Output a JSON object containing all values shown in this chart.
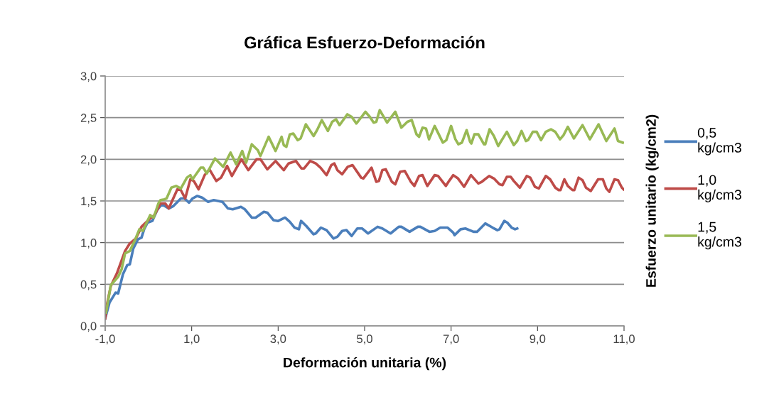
{
  "chart_data": {
    "type": "line",
    "title": "Gráfica Esfuerzo-Deformación",
    "xlabel": "Deformación unitaria (%)",
    "ylabel": "Esfuerzo unitario (kg/cm2)",
    "xlim": [
      -1,
      11
    ],
    "ylim": [
      0,
      3
    ],
    "xticks": [
      {
        "value": -1,
        "label": "-1,0"
      },
      {
        "value": 1,
        "label": "1,0"
      },
      {
        "value": 3,
        "label": "3,0"
      },
      {
        "value": 5,
        "label": "5,0"
      },
      {
        "value": 7,
        "label": "7,0"
      },
      {
        "value": 9,
        "label": "9,0"
      },
      {
        "value": 11,
        "label": "11,0"
      }
    ],
    "yticks": [
      {
        "value": 0,
        "label": "0,0"
      },
      {
        "value": 0.5,
        "label": "0,5"
      },
      {
        "value": 1,
        "label": "1,0"
      },
      {
        "value": 1.5,
        "label": "1,5"
      },
      {
        "value": 2,
        "label": "2,0"
      },
      {
        "value": 2.5,
        "label": "2,5"
      },
      {
        "value": 3,
        "label": "3,0"
      }
    ],
    "grid": "y",
    "legend": "right",
    "marker": "none",
    "line_style": "solid",
    "series": [
      {
        "name": "0,5 kg/cm3",
        "color": "#4a7ebb",
        "x": [
          -1.0,
          -0.9,
          -0.76,
          -0.7,
          -0.59,
          -0.49,
          -0.43,
          -0.35,
          -0.24,
          -0.16,
          -0.1,
          -0.02,
          0.09,
          0.2,
          0.31,
          0.47,
          0.58,
          0.75,
          0.83,
          0.94,
          1.02,
          1.13,
          1.24,
          1.38,
          1.51,
          1.71,
          1.84,
          1.95,
          2.14,
          2.23,
          2.39,
          2.48,
          2.67,
          2.75,
          2.89,
          3.0,
          3.16,
          3.27,
          3.38,
          3.48,
          3.53,
          3.65,
          3.82,
          3.87,
          3.99,
          4.12,
          4.28,
          4.37,
          4.48,
          4.58,
          4.7,
          4.83,
          4.94,
          5.08,
          5.3,
          5.41,
          5.6,
          5.79,
          5.85,
          6.04,
          6.23,
          6.29,
          6.5,
          6.62,
          6.75,
          6.92,
          7.05,
          7.08,
          7.22,
          7.33,
          7.52,
          7.6,
          7.79,
          7.96,
          8.07,
          8.12,
          8.23,
          8.3,
          8.4,
          8.48,
          8.53
        ],
        "values": [
          0.09,
          0.28,
          0.4,
          0.39,
          0.62,
          0.73,
          0.74,
          0.93,
          1.04,
          1.06,
          1.16,
          1.24,
          1.26,
          1.39,
          1.46,
          1.41,
          1.44,
          1.53,
          1.53,
          1.48,
          1.53,
          1.56,
          1.54,
          1.49,
          1.51,
          1.49,
          1.41,
          1.4,
          1.43,
          1.4,
          1.3,
          1.3,
          1.37,
          1.36,
          1.27,
          1.26,
          1.3,
          1.25,
          1.18,
          1.16,
          1.26,
          1.2,
          1.1,
          1.11,
          1.18,
          1.15,
          1.05,
          1.07,
          1.14,
          1.15,
          1.08,
          1.17,
          1.17,
          1.11,
          1.19,
          1.17,
          1.11,
          1.19,
          1.19,
          1.13,
          1.19,
          1.19,
          1.13,
          1.14,
          1.18,
          1.18,
          1.12,
          1.09,
          1.16,
          1.17,
          1.13,
          1.13,
          1.23,
          1.18,
          1.15,
          1.16,
          1.26,
          1.24,
          1.18,
          1.16,
          1.17
        ]
      },
      {
        "name": "1,0 kg/cm3",
        "color": "#be4b48",
        "x": [
          -1.0,
          -0.95,
          -0.87,
          -0.73,
          -0.54,
          -0.43,
          -0.29,
          -0.16,
          0.04,
          0.14,
          0.28,
          0.39,
          0.47,
          0.67,
          0.75,
          0.85,
          0.97,
          1.05,
          1.16,
          1.3,
          1.41,
          1.57,
          1.68,
          1.82,
          1.93,
          2.15,
          2.31,
          2.5,
          2.59,
          2.75,
          2.94,
          3.13,
          3.24,
          3.41,
          3.54,
          3.6,
          3.74,
          3.87,
          3.98,
          4.12,
          4.23,
          4.3,
          4.37,
          4.48,
          4.61,
          4.72,
          4.92,
          4.97,
          5.16,
          5.27,
          5.33,
          5.41,
          5.49,
          5.63,
          5.71,
          5.82,
          5.93,
          6.07,
          6.15,
          6.26,
          6.34,
          6.45,
          6.62,
          6.7,
          6.88,
          6.94,
          7.05,
          7.16,
          7.3,
          7.46,
          7.63,
          7.71,
          7.88,
          7.99,
          8.12,
          8.19,
          8.29,
          8.38,
          8.45,
          8.59,
          8.75,
          8.83,
          8.94,
          9.03,
          9.19,
          9.29,
          9.41,
          9.49,
          9.53,
          9.62,
          9.7,
          9.81,
          9.85,
          9.95,
          10.04,
          10.12,
          10.23,
          10.4,
          10.51,
          10.59,
          10.66,
          10.78,
          10.86,
          10.95,
          10.99
        ],
        "values": [
          0.09,
          0.28,
          0.48,
          0.63,
          0.9,
          0.99,
          1.05,
          1.19,
          1.29,
          1.33,
          1.47,
          1.47,
          1.41,
          1.64,
          1.63,
          1.53,
          1.76,
          1.74,
          1.64,
          1.81,
          1.88,
          1.74,
          1.78,
          1.92,
          1.8,
          2.0,
          1.87,
          2.0,
          2.0,
          1.88,
          1.98,
          1.87,
          1.95,
          1.98,
          1.89,
          1.89,
          1.98,
          1.95,
          1.9,
          1.81,
          1.93,
          1.95,
          1.87,
          1.82,
          1.91,
          1.93,
          1.78,
          1.77,
          1.9,
          1.73,
          1.74,
          1.87,
          1.88,
          1.73,
          1.7,
          1.85,
          1.86,
          1.73,
          1.68,
          1.8,
          1.81,
          1.68,
          1.81,
          1.8,
          1.68,
          1.73,
          1.81,
          1.77,
          1.67,
          1.81,
          1.71,
          1.73,
          1.8,
          1.77,
          1.7,
          1.69,
          1.79,
          1.79,
          1.74,
          1.66,
          1.8,
          1.78,
          1.67,
          1.65,
          1.8,
          1.76,
          1.66,
          1.63,
          1.63,
          1.76,
          1.68,
          1.63,
          1.63,
          1.78,
          1.75,
          1.66,
          1.62,
          1.76,
          1.76,
          1.65,
          1.61,
          1.76,
          1.75,
          1.66,
          1.64
        ]
      },
      {
        "name": "1,5 kg/cm3",
        "color": "#98b954",
        "x": [
          -0.98,
          -0.87,
          -0.7,
          -0.62,
          -0.54,
          -0.43,
          -0.32,
          -0.21,
          -0.13,
          0.04,
          0.12,
          0.23,
          0.28,
          0.37,
          0.42,
          0.53,
          0.64,
          0.75,
          0.89,
          0.97,
          1.02,
          1.21,
          1.27,
          1.35,
          1.54,
          1.73,
          1.9,
          2.03,
          2.17,
          2.26,
          2.39,
          2.53,
          2.59,
          2.78,
          2.94,
          3.08,
          3.13,
          3.19,
          3.27,
          3.35,
          3.45,
          3.52,
          3.64,
          3.82,
          3.9,
          4.01,
          4.15,
          4.25,
          4.34,
          4.42,
          4.6,
          4.7,
          4.81,
          5.02,
          5.12,
          5.21,
          5.27,
          5.35,
          5.52,
          5.71,
          5.85,
          5.99,
          6.09,
          6.2,
          6.26,
          6.34,
          6.42,
          6.49,
          6.62,
          6.81,
          6.89,
          7.0,
          7.1,
          7.17,
          7.25,
          7.36,
          7.44,
          7.47,
          7.54,
          7.63,
          7.76,
          7.79,
          7.89,
          7.99,
          8.09,
          8.29,
          8.45,
          8.53,
          8.63,
          8.73,
          8.78,
          8.89,
          8.98,
          9.08,
          9.19,
          9.31,
          9.41,
          9.52,
          9.6,
          9.7,
          9.84,
          10.04,
          10.21,
          10.41,
          10.59,
          10.78,
          10.86,
          10.97
        ],
        "values": [
          0.16,
          0.49,
          0.59,
          0.68,
          0.87,
          0.9,
          1.02,
          1.16,
          1.14,
          1.33,
          1.3,
          1.47,
          1.51,
          1.52,
          1.53,
          1.66,
          1.68,
          1.65,
          1.78,
          1.81,
          1.76,
          1.9,
          1.9,
          1.83,
          2.01,
          1.91,
          2.08,
          1.94,
          2.1,
          1.96,
          2.18,
          2.11,
          2.04,
          2.27,
          2.1,
          2.27,
          2.17,
          2.15,
          2.3,
          2.31,
          2.23,
          2.25,
          2.42,
          2.28,
          2.35,
          2.47,
          2.34,
          2.45,
          2.48,
          2.41,
          2.54,
          2.51,
          2.43,
          2.57,
          2.51,
          2.44,
          2.45,
          2.59,
          2.44,
          2.57,
          2.38,
          2.45,
          2.47,
          2.3,
          2.27,
          2.38,
          2.37,
          2.24,
          2.4,
          2.2,
          2.23,
          2.4,
          2.24,
          2.18,
          2.2,
          2.35,
          2.21,
          2.19,
          2.3,
          2.3,
          2.18,
          2.18,
          2.36,
          2.28,
          2.16,
          2.33,
          2.17,
          2.22,
          2.34,
          2.22,
          2.23,
          2.33,
          2.33,
          2.23,
          2.33,
          2.36,
          2.33,
          2.24,
          2.29,
          2.39,
          2.25,
          2.41,
          2.24,
          2.42,
          2.22,
          2.37,
          2.22,
          2.2
        ]
      }
    ]
  }
}
